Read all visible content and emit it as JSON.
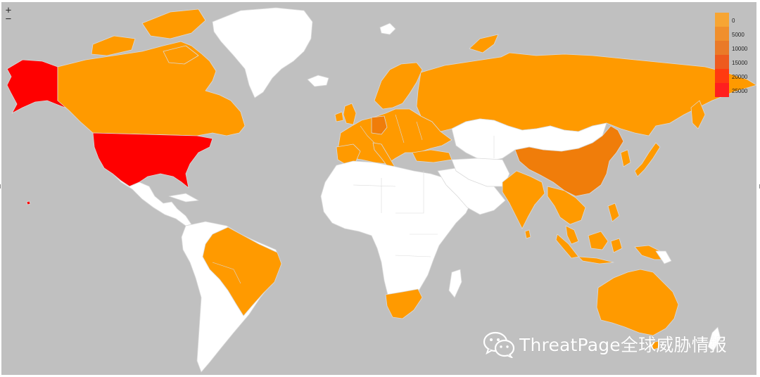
{
  "controls": {
    "zoom_in": "+",
    "zoom_out": "−"
  },
  "legend": {
    "items": [
      {
        "label": "0",
        "color": "#f7a533"
      },
      {
        "label": "5000",
        "color": "#f08f2c"
      },
      {
        "label": "10000",
        "color": "#ea7a28"
      },
      {
        "label": "15000",
        "color": "#ee5a1e"
      },
      {
        "label": "20000",
        "color": "#ff3a10"
      },
      {
        "label": "25000",
        "color": "#ff1f1f"
      }
    ]
  },
  "map_colors": {
    "ocean": "#c0c0c0",
    "no_data": "#ffffff",
    "low": "#ff9a00",
    "mid": "#f07d0a",
    "high": "#ff0000",
    "border": "#d9d9d9"
  },
  "regions": [
    {
      "name": "United States",
      "level": "high"
    },
    {
      "name": "Alaska",
      "level": "high"
    },
    {
      "name": "Canada",
      "level": "low"
    },
    {
      "name": "Greenland",
      "level": "no_data"
    },
    {
      "name": "Mexico",
      "level": "no_data"
    },
    {
      "name": "Brazil",
      "level": "low"
    },
    {
      "name": "Russia",
      "level": "low"
    },
    {
      "name": "China",
      "level": "mid"
    },
    {
      "name": "India",
      "level": "low"
    },
    {
      "name": "Australia",
      "level": "low"
    },
    {
      "name": "South Africa",
      "level": "low"
    },
    {
      "name": "Europe",
      "level": "low"
    },
    {
      "name": "Japan",
      "level": "low"
    },
    {
      "name": "Turkey",
      "level": "low"
    },
    {
      "name": "Africa",
      "level": "no_data"
    }
  ],
  "watermark": {
    "text": "ThreatPage全球威胁情报",
    "icon": "wechat-icon"
  }
}
